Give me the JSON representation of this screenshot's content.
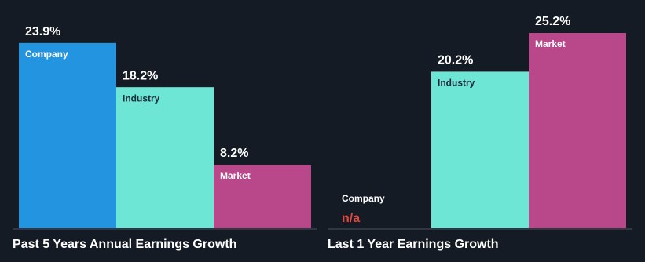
{
  "chart_data": [
    {
      "type": "bar",
      "title": "Past 5 Years Annual Earnings Growth",
      "categories": [
        "Company",
        "Industry",
        "Market"
      ],
      "values": [
        23.9,
        18.2,
        8.2
      ],
      "value_labels": [
        "23.9%",
        "18.2%",
        "8.2%"
      ],
      "colors": [
        "#2394e0",
        "#6ee6d6",
        "#b9488a"
      ]
    },
    {
      "type": "bar",
      "title": "Last 1 Year Earnings Growth",
      "categories": [
        "Company",
        "Industry",
        "Market"
      ],
      "values": [
        null,
        20.2,
        25.2
      ],
      "value_labels": [
        "n/a",
        "20.2%",
        "25.2%"
      ],
      "colors": [
        "#2394e0",
        "#6ee6d6",
        "#b9488a"
      ]
    }
  ]
}
